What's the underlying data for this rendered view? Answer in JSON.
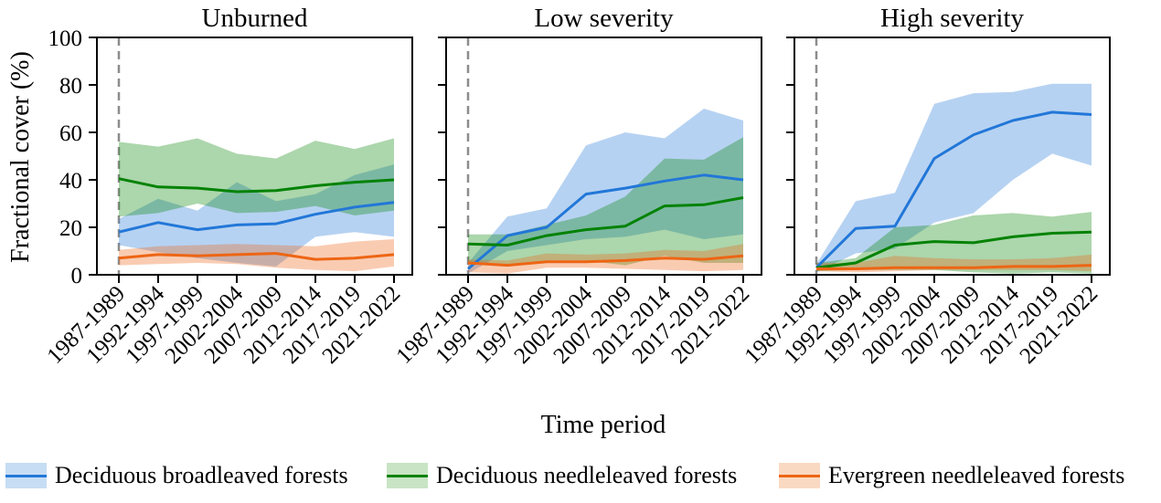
{
  "figure": {
    "ylabel": "Fractional cover (%)",
    "xlabel": "Time period"
  },
  "legend": {
    "items": [
      {
        "label": "Deciduous broadleaved forests",
        "line_color": "#2277d8",
        "fill_color": "#c6ddf4"
      },
      {
        "label": "Deciduous needleleaved forests",
        "line_color": "#038203",
        "fill_color": "#c8e4c4"
      },
      {
        "label": "Evergreen needleleaved forests",
        "line_color": "#ed6514",
        "fill_color": "#fad9c2"
      }
    ]
  },
  "chart_data": [
    {
      "type": "line",
      "title": "Unburned",
      "categories": [
        "1987-1989",
        "1992-1994",
        "1997-1999",
        "2002-2004",
        "2007-2009",
        "2012-2014",
        "2017-2019",
        "2021-2022"
      ],
      "ylim": [
        0,
        100
      ],
      "yticks": [
        0,
        20,
        40,
        60,
        80,
        100
      ],
      "grid": false,
      "vline": {
        "at_category": "1987-1989",
        "style": "dashed",
        "color": "#8c8c8c"
      },
      "series": [
        {
          "name": "Deciduous broadleaved forests",
          "color": "#2277d8",
          "values": [
            18,
            22,
            19,
            21,
            21.5,
            25.5,
            28.5,
            30.5
          ],
          "band_low": [
            12.5,
            9.5,
            7,
            5,
            3.5,
            16,
            18,
            16
          ],
          "band_high": [
            23.5,
            32,
            27,
            39,
            31,
            34,
            42,
            46.5
          ]
        },
        {
          "name": "Deciduous needleleaved forests",
          "color": "#038203",
          "values": [
            40.5,
            37,
            36.5,
            35,
            35.5,
            37.5,
            39,
            40
          ],
          "band_low": [
            24.5,
            26,
            30,
            26,
            26.5,
            29,
            25,
            27
          ],
          "band_high": [
            56,
            54,
            57.5,
            51,
            49,
            56.5,
            53,
            57.5
          ]
        },
        {
          "name": "Evergreen needleleaved forests",
          "color": "#ed6514",
          "values": [
            7,
            8.5,
            8,
            8.5,
            9,
            6.5,
            7,
            8.5
          ],
          "band_low": [
            4,
            4.5,
            5,
            4.5,
            3,
            2,
            1.5,
            3.5
          ],
          "band_high": [
            10.5,
            12,
            12.5,
            13,
            12.5,
            12,
            14,
            15
          ]
        }
      ]
    },
    {
      "type": "line",
      "title": "Low severity",
      "categories": [
        "1987-1989",
        "1992-1994",
        "1997-1999",
        "2002-2004",
        "2007-2009",
        "2012-2014",
        "2017-2019",
        "2021-2022"
      ],
      "ylim": [
        0,
        100
      ],
      "yticks": [
        0,
        20,
        40,
        60,
        80,
        100
      ],
      "grid": false,
      "vline": {
        "at_category": "1987-1989",
        "style": "dashed",
        "color": "#8c8c8c"
      },
      "series": [
        {
          "name": "Deciduous broadleaved forests",
          "color": "#2277d8",
          "values": [
            2.5,
            16.5,
            20,
            34,
            36.5,
            39.5,
            42,
            40
          ],
          "band_low": [
            0.5,
            10,
            12.5,
            15,
            16,
            19,
            15,
            17
          ],
          "band_high": [
            5,
            24.5,
            28,
            54.5,
            60,
            57.5,
            70,
            65
          ]
        },
        {
          "name": "Deciduous needleleaved forests",
          "color": "#038203",
          "values": [
            13,
            12.5,
            16.5,
            19,
            20.5,
            29,
            29.5,
            32.5
          ],
          "band_low": [
            5,
            4,
            6,
            6,
            4,
            8,
            5,
            5
          ],
          "band_high": [
            17,
            17,
            21,
            25,
            33,
            49,
            48.5,
            58
          ]
        },
        {
          "name": "Evergreen needleleaved forests",
          "color": "#ed6514",
          "values": [
            5,
            4,
            5.5,
            5.5,
            6,
            7,
            6.5,
            8
          ],
          "band_low": [
            1,
            0.5,
            3,
            3,
            2.5,
            2,
            1.5,
            2
          ],
          "band_high": [
            6.5,
            6,
            9,
            8.5,
            9,
            10.5,
            10,
            13
          ]
        }
      ]
    },
    {
      "type": "line",
      "title": "High severity",
      "categories": [
        "1987-1989",
        "1992-1994",
        "1997-1999",
        "2002-2004",
        "2007-2009",
        "2012-2014",
        "2017-2019",
        "2021-2022"
      ],
      "ylim": [
        0,
        100
      ],
      "yticks": [
        0,
        20,
        40,
        60,
        80,
        100
      ],
      "grid": false,
      "vline": {
        "at_category": "1987-1989",
        "style": "dashed",
        "color": "#8c8c8c"
      },
      "series": [
        {
          "name": "Deciduous broadleaved forests",
          "color": "#2277d8",
          "values": [
            3,
            19.5,
            20.5,
            49,
            59,
            65,
            68.5,
            67.5
          ],
          "band_low": [
            1,
            9,
            11,
            22,
            26,
            40,
            51,
            46
          ],
          "band_high": [
            4.5,
            31,
            34.5,
            72,
            76.5,
            77,
            80.5,
            80.5
          ]
        },
        {
          "name": "Deciduous needleleaved forests",
          "color": "#038203",
          "values": [
            3,
            5,
            12.5,
            14,
            13.5,
            16,
            17.5,
            18
          ],
          "band_low": [
            1.5,
            2,
            2,
            2,
            1,
            0.5,
            1,
            0.5
          ],
          "band_high": [
            5,
            7,
            20,
            21,
            25,
            26,
            24.5,
            26.5
          ]
        },
        {
          "name": "Evergreen needleleaved forests",
          "color": "#ed6514",
          "values": [
            2.5,
            2.5,
            3,
            3,
            3,
            3.5,
            3.5,
            4
          ],
          "band_low": [
            1.5,
            1,
            1.5,
            2,
            2,
            2,
            2,
            1.5
          ],
          "band_high": [
            5,
            5,
            8,
            7,
            6.5,
            6.5,
            7,
            8.5
          ]
        }
      ]
    }
  ]
}
